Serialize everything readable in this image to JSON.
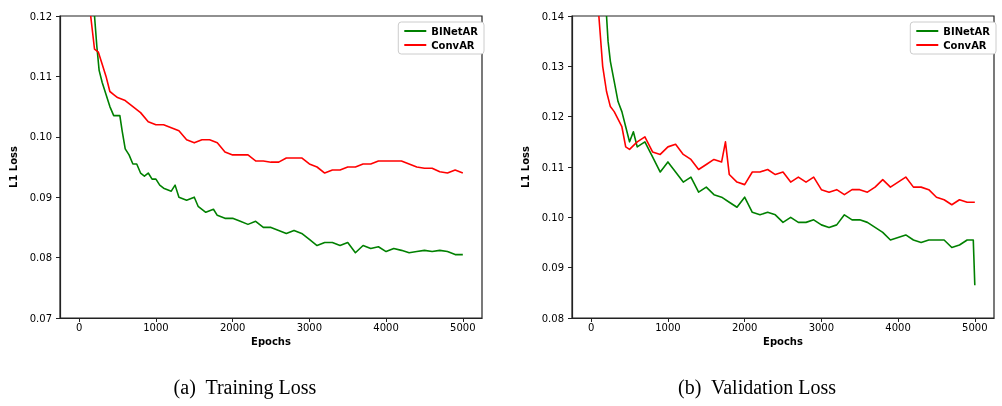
{
  "chart_data": [
    {
      "type": "line",
      "title": "(a)  Training Loss",
      "xlabel": "Epochs",
      "ylabel": "L1 Loss",
      "xlim": [
        -250,
        5250
      ],
      "ylim": [
        0.07,
        0.12
      ],
      "xticks": [
        0,
        1000,
        2000,
        3000,
        4000,
        5000
      ],
      "yticks": [
        {
          "value": 0.07,
          "label": "0.07"
        },
        {
          "value": 0.08,
          "label": "0.08"
        },
        {
          "value": 0.09,
          "label": "0.09"
        },
        {
          "value": 0.1,
          "label": "0.10"
        },
        {
          "value": 0.11,
          "label": "0.11"
        },
        {
          "value": 0.12,
          "label": "0.12"
        }
      ],
      "legend": "top right",
      "grid": false,
      "series": [
        {
          "name": "BINetAR",
          "color": "#008000",
          "x": [
            200,
            230,
            260,
            300,
            350,
            400,
            450,
            500,
            530,
            560,
            600,
            650,
            700,
            750,
            800,
            850,
            900,
            950,
            1000,
            1050,
            1100,
            1200,
            1250,
            1300,
            1400,
            1500,
            1550,
            1650,
            1750,
            1800,
            1900,
            2000,
            2100,
            2200,
            2300,
            2400,
            2500,
            2600,
            2700,
            2800,
            2900,
            3000,
            3100,
            3200,
            3300,
            3400,
            3500,
            3600,
            3700,
            3800,
            3900,
            4000,
            4100,
            4200,
            4300,
            4400,
            4500,
            4600,
            4700,
            4800,
            4900,
            5000
          ],
          "values": [
            0.12,
            0.115,
            0.111,
            0.109,
            0.107,
            0.105,
            0.1035,
            0.1035,
            0.1035,
            0.101,
            0.098,
            0.097,
            0.0955,
            0.0955,
            0.094,
            0.0935,
            0.094,
            0.093,
            0.093,
            0.092,
            0.0915,
            0.091,
            0.092,
            0.09,
            0.0895,
            0.09,
            0.0885,
            0.0875,
            0.088,
            0.087,
            0.0865,
            0.0865,
            0.086,
            0.0855,
            0.086,
            0.085,
            0.085,
            0.0845,
            0.084,
            0.0845,
            0.084,
            0.083,
            0.082,
            0.0825,
            0.0825,
            0.082,
            0.0825,
            0.0808,
            0.082,
            0.0815,
            0.0818,
            0.081,
            0.0815,
            0.0812,
            0.0808,
            0.081,
            0.0812,
            0.081,
            0.0812,
            0.081,
            0.0805,
            0.0805
          ]
        },
        {
          "name": "ConvAR",
          "color": "#ff0000",
          "x": [
            150,
            200,
            250,
            300,
            350,
            400,
            450,
            500,
            600,
            700,
            800,
            900,
            1000,
            1100,
            1200,
            1300,
            1400,
            1500,
            1600,
            1700,
            1800,
            1900,
            2000,
            2100,
            2200,
            2300,
            2400,
            2500,
            2600,
            2700,
            2800,
            2900,
            3000,
            3100,
            3200,
            3300,
            3400,
            3500,
            3600,
            3700,
            3800,
            3900,
            4000,
            4100,
            4200,
            4300,
            4400,
            4500,
            4600,
            4700,
            4800,
            4900,
            5000
          ],
          "values": [
            0.12,
            0.1145,
            0.114,
            0.112,
            0.11,
            0.1075,
            0.107,
            0.1065,
            0.106,
            0.105,
            0.104,
            0.1025,
            0.102,
            0.102,
            0.1015,
            0.101,
            0.0995,
            0.099,
            0.0995,
            0.0995,
            0.099,
            0.0975,
            0.097,
            0.097,
            0.097,
            0.096,
            0.096,
            0.0958,
            0.0958,
            0.0965,
            0.0965,
            0.0965,
            0.0955,
            0.095,
            0.094,
            0.0945,
            0.0945,
            0.095,
            0.095,
            0.0955,
            0.0955,
            0.096,
            0.096,
            0.096,
            0.096,
            0.0955,
            0.095,
            0.0948,
            0.0948,
            0.0942,
            0.094,
            0.0945,
            0.094
          ]
        }
      ]
    },
    {
      "type": "line",
      "title": "(b)  Validation Loss",
      "xlabel": "Epochs",
      "ylabel": "L1 Loss",
      "xlim": [
        -250,
        5250
      ],
      "ylim": [
        0.08,
        0.14
      ],
      "xticks": [
        0,
        1000,
        2000,
        3000,
        4000,
        5000
      ],
      "yticks": [
        {
          "value": 0.08,
          "label": "0.08"
        },
        {
          "value": 0.09,
          "label": "0.09"
        },
        {
          "value": 0.1,
          "label": "0.10"
        },
        {
          "value": 0.11,
          "label": "0.11"
        },
        {
          "value": 0.12,
          "label": "0.12"
        },
        {
          "value": 0.13,
          "label": "0.13"
        },
        {
          "value": 0.14,
          "label": "0.14"
        }
      ],
      "legend": "top right",
      "grid": false,
      "series": [
        {
          "name": "BINetAR",
          "color": "#008000",
          "x": [
            200,
            220,
            250,
            300,
            350,
            400,
            450,
            500,
            550,
            600,
            700,
            800,
            900,
            1000,
            1100,
            1200,
            1300,
            1400,
            1500,
            1600,
            1700,
            1800,
            1900,
            2000,
            2100,
            2200,
            2300,
            2400,
            2500,
            2600,
            2700,
            2800,
            2900,
            3000,
            3100,
            3200,
            3300,
            3400,
            3500,
            3600,
            3700,
            3800,
            3900,
            4000,
            4100,
            4200,
            4300,
            4400,
            4500,
            4600,
            4700,
            4800,
            4900,
            4980,
            5000
          ],
          "values": [
            0.14,
            0.135,
            0.131,
            0.127,
            0.123,
            0.121,
            0.118,
            0.115,
            0.117,
            0.114,
            0.115,
            0.112,
            0.109,
            0.111,
            0.109,
            0.107,
            0.108,
            0.105,
            0.106,
            0.1045,
            0.104,
            0.103,
            0.102,
            0.104,
            0.101,
            0.1005,
            0.101,
            0.1005,
            0.099,
            0.1,
            0.099,
            0.099,
            0.0995,
            0.0985,
            0.098,
            0.0985,
            0.1005,
            0.0995,
            0.0995,
            0.099,
            0.098,
            0.097,
            0.0955,
            0.096,
            0.0965,
            0.0955,
            0.095,
            0.0955,
            0.0955,
            0.0955,
            0.094,
            0.0945,
            0.0955,
            0.0955,
            0.0865
          ]
        },
        {
          "name": "ConvAR",
          "color": "#ff0000",
          "x": [
            100,
            150,
            200,
            250,
            300,
            350,
            400,
            450,
            500,
            600,
            700,
            800,
            900,
            1000,
            1100,
            1200,
            1300,
            1400,
            1500,
            1600,
            1700,
            1750,
            1800,
            1900,
            2000,
            2100,
            2200,
            2300,
            2400,
            2500,
            2600,
            2700,
            2800,
            2900,
            3000,
            3100,
            3200,
            3300,
            3400,
            3500,
            3600,
            3700,
            3800,
            3900,
            4000,
            4100,
            4200,
            4300,
            4400,
            4500,
            4600,
            4700,
            4800,
            4900,
            5000
          ],
          "values": [
            0.14,
            0.13,
            0.125,
            0.122,
            0.121,
            0.1195,
            0.118,
            0.114,
            0.1135,
            0.115,
            0.116,
            0.113,
            0.1125,
            0.114,
            0.1145,
            0.1125,
            0.1115,
            0.1095,
            0.1105,
            0.1115,
            0.111,
            0.115,
            0.1085,
            0.107,
            0.1065,
            0.109,
            0.109,
            0.1095,
            0.1085,
            0.109,
            0.107,
            0.108,
            0.107,
            0.108,
            0.1055,
            0.105,
            0.1055,
            0.1045,
            0.1055,
            0.1055,
            0.105,
            0.106,
            0.1075,
            0.106,
            0.107,
            0.108,
            0.106,
            0.106,
            0.1055,
            0.104,
            0.1035,
            0.1025,
            0.1035,
            0.103,
            0.103
          ]
        }
      ]
    }
  ]
}
